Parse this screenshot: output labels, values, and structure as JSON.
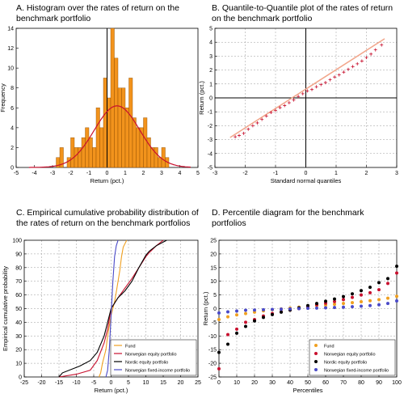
{
  "colors": {
    "bar_fill": "#f2931c",
    "bar_edge": "#8a4a00",
    "normal_curve": "#c8102e",
    "qq_line": "#f2a58a",
    "qq_marker": "#c8102e",
    "fund": "#f0a020",
    "equity": "#c8102e",
    "nordic": "#000000",
    "fixed_income": "#4a4ac8"
  },
  "chart_data": [
    {
      "type": "bar",
      "title": "A.  Histogram over the rates of return on the benchmark portfolio",
      "xlabel": "Return (pct.)",
      "ylabel": "Frequency",
      "xlim": [
        -5,
        5
      ],
      "ylim": [
        0,
        14
      ],
      "xticks": [
        -5,
        -4,
        -3,
        -2,
        -1,
        0,
        1,
        2,
        3,
        4,
        5
      ],
      "yticks": [
        0,
        2,
        4,
        6,
        8,
        10,
        12,
        14
      ],
      "grid": false,
      "bin_width": 0.2,
      "bin_starts": [
        -2.8,
        -2.6,
        -2.4,
        -2.2,
        -2.0,
        -1.8,
        -1.6,
        -1.4,
        -1.2,
        -1.0,
        -0.8,
        -0.6,
        -0.4,
        -0.2,
        0.0,
        0.2,
        0.4,
        0.6,
        0.8,
        1.0,
        1.2,
        1.4,
        1.6,
        1.8,
        2.0,
        2.2,
        2.4,
        2.6,
        2.8,
        3.0,
        3.2
      ],
      "values": [
        1,
        2,
        0,
        1,
        3,
        2,
        2,
        3,
        4,
        3,
        2,
        6,
        4,
        9,
        7,
        14,
        11,
        8,
        8,
        6,
        9,
        5,
        4,
        4,
        5,
        3,
        2,
        2,
        1,
        2,
        1
      ],
      "normal_fit": {
        "mean": 0.55,
        "sd": 1.25,
        "peak": 6.2
      }
    },
    {
      "type": "scatter",
      "title": "B.  Quantile-to-Quantile plot of the rates of return on the benchmark portfolio",
      "xlabel": "Standard normal quantiles",
      "ylabel": "Return (pct.)",
      "xlim": [
        -3,
        3
      ],
      "ylim": [
        -5,
        5
      ],
      "xticks": [
        -3,
        -2,
        -1,
        0,
        1,
        2,
        3
      ],
      "yticks": [
        -5,
        -4,
        -3,
        -2,
        -1,
        0,
        1,
        2,
        3,
        4,
        5
      ],
      "grid": true,
      "reference_line": {
        "x": [
          -2.5,
          2.6
        ],
        "y": [
          -2.85,
          4.25
        ]
      },
      "x": [
        -2.33,
        -2.2,
        -2.05,
        -1.9,
        -1.75,
        -1.6,
        -1.45,
        -1.3,
        -1.15,
        -1.0,
        -0.85,
        -0.7,
        -0.55,
        -0.4,
        -0.25,
        -0.1,
        0.05,
        0.2,
        0.35,
        0.5,
        0.65,
        0.8,
        0.95,
        1.1,
        1.25,
        1.4,
        1.55,
        1.7,
        1.85,
        2.0,
        2.15,
        2.3,
        2.5
      ],
      "y": [
        -2.8,
        -2.7,
        -2.55,
        -2.25,
        -2.0,
        -1.8,
        -1.55,
        -1.3,
        -1.05,
        -0.9,
        -0.7,
        -0.55,
        -0.35,
        -0.15,
        0.1,
        0.3,
        0.5,
        0.6,
        0.8,
        0.95,
        1.1,
        1.3,
        1.5,
        1.65,
        1.85,
        2.05,
        2.25,
        2.45,
        2.65,
        2.9,
        3.15,
        3.45,
        3.8
      ]
    },
    {
      "type": "line",
      "title": "C.  Empirical cumulative probability distribution of the rates of return on the benchmark portfolios",
      "xlabel": "Return (pct.)",
      "ylabel": "Empirical cumulative probability",
      "xlim": [
        -25,
        25
      ],
      "ylim": [
        0,
        100
      ],
      "xticks": [
        -25,
        -20,
        -15,
        -10,
        -5,
        0,
        5,
        10,
        15,
        20,
        25
      ],
      "yticks": [
        0,
        10,
        20,
        30,
        40,
        50,
        60,
        70,
        80,
        90,
        100
      ],
      "grid": true,
      "legend": "bottom-right",
      "series": [
        {
          "name": "Fund",
          "color": "#f0a020",
          "x": [
            -3.5,
            -3,
            -2.5,
            -1.5,
            -1,
            0,
            1,
            1.5,
            2,
            2.5,
            3,
            3.5,
            4.5
          ],
          "y": [
            0,
            3,
            10,
            20,
            30,
            45,
            55,
            62,
            70,
            78,
            88,
            95,
            100
          ]
        },
        {
          "name": "Norwegian equity portfolio",
          "color": "#c8102e",
          "x": [
            -15,
            -10,
            -6,
            -4,
            -2,
            -1,
            0,
            2,
            4,
            6,
            8,
            10,
            11,
            13,
            15
          ],
          "y": [
            0,
            2,
            5,
            12,
            25,
            35,
            50,
            58,
            65,
            72,
            80,
            88,
            91,
            96,
            100
          ]
        },
        {
          "name": "Nordic equity portfolio",
          "color": "#000000",
          "x": [
            -15,
            -14,
            -9,
            -6,
            -4,
            -2,
            -1,
            0,
            2,
            4,
            6,
            8,
            10,
            11,
            13,
            16
          ],
          "y": [
            0,
            3,
            8,
            12,
            18,
            30,
            40,
            50,
            58,
            63,
            70,
            80,
            89,
            92,
            96,
            100
          ]
        },
        {
          "name": "Norwegian fixed-income portfolio",
          "color": "#4a4ac8",
          "x": [
            -1.5,
            -1,
            -0.5,
            0,
            0.5,
            1,
            1.5,
            2
          ],
          "y": [
            0,
            5,
            20,
            45,
            70,
            88,
            96,
            100
          ]
        }
      ]
    },
    {
      "type": "scatter",
      "title": "D.  Percentile diagram for the benchmark portfolios",
      "xlabel": "Percentiles",
      "ylabel": "Return (pct.)",
      "xlim": [
        0,
        100
      ],
      "ylim": [
        -25,
        25
      ],
      "xticks": [
        0,
        10,
        20,
        30,
        40,
        50,
        60,
        70,
        80,
        90,
        100
      ],
      "yticks": [
        -25,
        -20,
        -15,
        -10,
        -5,
        0,
        5,
        10,
        15,
        20,
        25
      ],
      "grid": true,
      "legend": "bottom-right",
      "x": [
        0,
        5,
        10,
        15,
        20,
        25,
        30,
        35,
        40,
        45,
        50,
        55,
        60,
        65,
        70,
        75,
        80,
        85,
        90,
        95,
        100
      ],
      "series": [
        {
          "name": "Fund",
          "color": "#f0a020",
          "values": [
            -4,
            -3,
            -2.3,
            -1.8,
            -1.3,
            -0.8,
            -0.4,
            -0.1,
            0.2,
            0.5,
            0.8,
            1.1,
            1.3,
            1.6,
            1.9,
            2.2,
            2.5,
            2.9,
            3.3,
            3.8,
            4.5
          ]
        },
        {
          "name": "Norwegian equity portfolio",
          "color": "#c8102e",
          "values": [
            -22,
            -9.5,
            -7.5,
            -5,
            -4,
            -2.7,
            -1.8,
            -1.2,
            -0.5,
            0,
            0.7,
            1.4,
            2,
            2.6,
            3.3,
            4.1,
            5,
            5.8,
            6.9,
            9.2,
            13
          ]
        },
        {
          "name": "Nordic equity portfolio",
          "color": "#000000",
          "values": [
            -16,
            -13,
            -9,
            -6.5,
            -4.5,
            -3.2,
            -2.2,
            -1.3,
            -0.5,
            0.3,
            1.1,
            1.9,
            2.7,
            3.5,
            4.4,
            5.4,
            6.6,
            7.8,
            9.5,
            11,
            15.5
          ]
        },
        {
          "name": "Norwegian fixed-income portfolio",
          "color": "#4a4ac8",
          "values": [
            -1.6,
            -1.2,
            -0.9,
            -0.6,
            -0.5,
            -0.4,
            -0.3,
            -0.2,
            -0.1,
            0,
            0.1,
            0.2,
            0.3,
            0.4,
            0.5,
            0.7,
            0.9,
            1.1,
            1.4,
            1.9,
            2.8
          ]
        }
      ]
    }
  ]
}
